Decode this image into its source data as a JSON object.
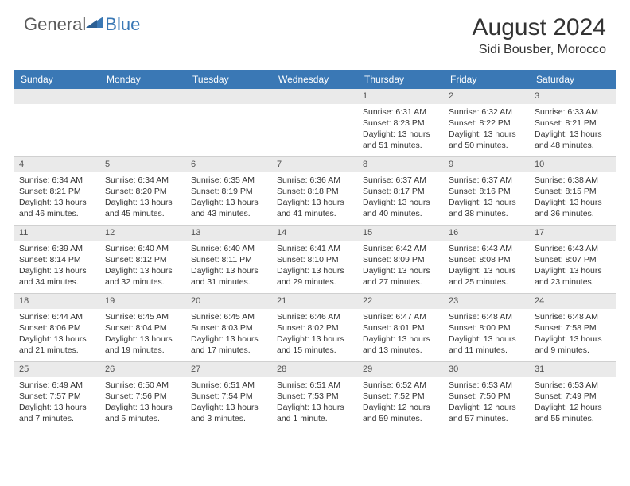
{
  "logo": {
    "text1": "General",
    "text2": "Blue"
  },
  "title": "August 2024",
  "location": "Sidi Bousber, Morocco",
  "colors": {
    "header_bg": "#3a78b5",
    "header_text": "#ffffff",
    "daynum_bg": "#eaeaea",
    "text": "#333333",
    "logo_gray": "#5a5a5a",
    "logo_blue": "#3a78b5",
    "border": "#d0d0d0"
  },
  "day_names": [
    "Sunday",
    "Monday",
    "Tuesday",
    "Wednesday",
    "Thursday",
    "Friday",
    "Saturday"
  ],
  "weeks": [
    [
      null,
      null,
      null,
      null,
      {
        "n": "1",
        "sr": "6:31 AM",
        "ss": "8:23 PM",
        "dl": "13 hours and 51 minutes."
      },
      {
        "n": "2",
        "sr": "6:32 AM",
        "ss": "8:22 PM",
        "dl": "13 hours and 50 minutes."
      },
      {
        "n": "3",
        "sr": "6:33 AM",
        "ss": "8:21 PM",
        "dl": "13 hours and 48 minutes."
      }
    ],
    [
      {
        "n": "4",
        "sr": "6:34 AM",
        "ss": "8:21 PM",
        "dl": "13 hours and 46 minutes."
      },
      {
        "n": "5",
        "sr": "6:34 AM",
        "ss": "8:20 PM",
        "dl": "13 hours and 45 minutes."
      },
      {
        "n": "6",
        "sr": "6:35 AM",
        "ss": "8:19 PM",
        "dl": "13 hours and 43 minutes."
      },
      {
        "n": "7",
        "sr": "6:36 AM",
        "ss": "8:18 PM",
        "dl": "13 hours and 41 minutes."
      },
      {
        "n": "8",
        "sr": "6:37 AM",
        "ss": "8:17 PM",
        "dl": "13 hours and 40 minutes."
      },
      {
        "n": "9",
        "sr": "6:37 AM",
        "ss": "8:16 PM",
        "dl": "13 hours and 38 minutes."
      },
      {
        "n": "10",
        "sr": "6:38 AM",
        "ss": "8:15 PM",
        "dl": "13 hours and 36 minutes."
      }
    ],
    [
      {
        "n": "11",
        "sr": "6:39 AM",
        "ss": "8:14 PM",
        "dl": "13 hours and 34 minutes."
      },
      {
        "n": "12",
        "sr": "6:40 AM",
        "ss": "8:12 PM",
        "dl": "13 hours and 32 minutes."
      },
      {
        "n": "13",
        "sr": "6:40 AM",
        "ss": "8:11 PM",
        "dl": "13 hours and 31 minutes."
      },
      {
        "n": "14",
        "sr": "6:41 AM",
        "ss": "8:10 PM",
        "dl": "13 hours and 29 minutes."
      },
      {
        "n": "15",
        "sr": "6:42 AM",
        "ss": "8:09 PM",
        "dl": "13 hours and 27 minutes."
      },
      {
        "n": "16",
        "sr": "6:43 AM",
        "ss": "8:08 PM",
        "dl": "13 hours and 25 minutes."
      },
      {
        "n": "17",
        "sr": "6:43 AM",
        "ss": "8:07 PM",
        "dl": "13 hours and 23 minutes."
      }
    ],
    [
      {
        "n": "18",
        "sr": "6:44 AM",
        "ss": "8:06 PM",
        "dl": "13 hours and 21 minutes."
      },
      {
        "n": "19",
        "sr": "6:45 AM",
        "ss": "8:04 PM",
        "dl": "13 hours and 19 minutes."
      },
      {
        "n": "20",
        "sr": "6:45 AM",
        "ss": "8:03 PM",
        "dl": "13 hours and 17 minutes."
      },
      {
        "n": "21",
        "sr": "6:46 AM",
        "ss": "8:02 PM",
        "dl": "13 hours and 15 minutes."
      },
      {
        "n": "22",
        "sr": "6:47 AM",
        "ss": "8:01 PM",
        "dl": "13 hours and 13 minutes."
      },
      {
        "n": "23",
        "sr": "6:48 AM",
        "ss": "8:00 PM",
        "dl": "13 hours and 11 minutes."
      },
      {
        "n": "24",
        "sr": "6:48 AM",
        "ss": "7:58 PM",
        "dl": "13 hours and 9 minutes."
      }
    ],
    [
      {
        "n": "25",
        "sr": "6:49 AM",
        "ss": "7:57 PM",
        "dl": "13 hours and 7 minutes."
      },
      {
        "n": "26",
        "sr": "6:50 AM",
        "ss": "7:56 PM",
        "dl": "13 hours and 5 minutes."
      },
      {
        "n": "27",
        "sr": "6:51 AM",
        "ss": "7:54 PM",
        "dl": "13 hours and 3 minutes."
      },
      {
        "n": "28",
        "sr": "6:51 AM",
        "ss": "7:53 PM",
        "dl": "13 hours and 1 minute."
      },
      {
        "n": "29",
        "sr": "6:52 AM",
        "ss": "7:52 PM",
        "dl": "12 hours and 59 minutes."
      },
      {
        "n": "30",
        "sr": "6:53 AM",
        "ss": "7:50 PM",
        "dl": "12 hours and 57 minutes."
      },
      {
        "n": "31",
        "sr": "6:53 AM",
        "ss": "7:49 PM",
        "dl": "12 hours and 55 minutes."
      }
    ]
  ],
  "labels": {
    "sunrise": "Sunrise:",
    "sunset": "Sunset:",
    "daylight": "Daylight:"
  }
}
